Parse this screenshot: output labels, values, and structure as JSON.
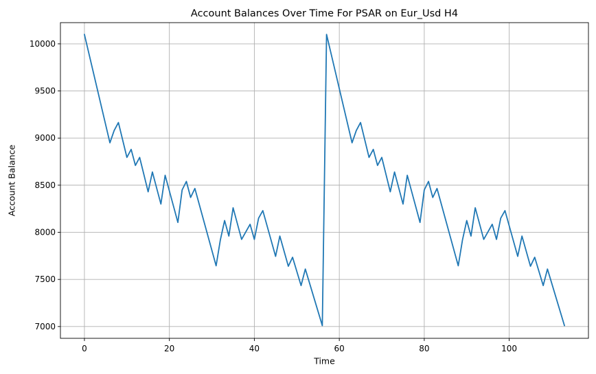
{
  "chart_data": {
    "type": "line",
    "title": "Account Balances Over Time For PSAR on Eur_Usd H4",
    "xlabel": "Time",
    "ylabel": "Account Balance",
    "xlim": [
      -5.65,
      118.65
    ],
    "ylim": [
      6875,
      10225
    ],
    "xticks": [
      0,
      20,
      40,
      60,
      80,
      100
    ],
    "yticks": [
      7000,
      7500,
      8000,
      8500,
      9000,
      9500,
      10000
    ],
    "grid": true,
    "colors": {
      "line": "#1f77b4",
      "grid": "#b0b0b0",
      "axis": "#000000"
    },
    "series": [
      {
        "name": "Account Balance",
        "x": [
          0,
          6,
          7,
          8,
          10,
          11,
          12,
          13,
          15,
          16,
          18,
          19,
          22,
          23,
          24,
          25,
          26,
          31,
          32,
          33,
          34,
          35,
          37,
          39,
          40,
          41,
          42,
          45,
          46,
          48,
          49,
          51,
          52,
          56,
          57,
          63,
          64,
          65,
          67,
          68,
          69,
          70,
          72,
          73,
          75,
          76,
          79,
          80,
          81,
          82,
          83,
          88,
          89,
          90,
          91,
          92,
          94,
          96,
          97,
          98,
          99,
          102,
          103,
          105,
          106,
          108,
          109,
          113
        ],
        "y": [
          10100,
          8950,
          9080,
          9165,
          8795,
          8880,
          8710,
          8795,
          8430,
          8640,
          8300,
          8605,
          8105,
          8450,
          8540,
          8370,
          8465,
          7645,
          7920,
          8125,
          7960,
          8260,
          7925,
          8085,
          7925,
          8150,
          8230,
          7745,
          7960,
          7640,
          7735,
          7435,
          7610,
          7010,
          10100,
          8950,
          9080,
          9165,
          8795,
          8880,
          8710,
          8795,
          8430,
          8640,
          8300,
          8605,
          8105,
          8450,
          8540,
          8370,
          8465,
          7645,
          7920,
          8125,
          7960,
          8260,
          7925,
          8085,
          7925,
          8150,
          8230,
          7745,
          7960,
          7640,
          7735,
          7435,
          7610,
          7010
        ]
      }
    ]
  }
}
